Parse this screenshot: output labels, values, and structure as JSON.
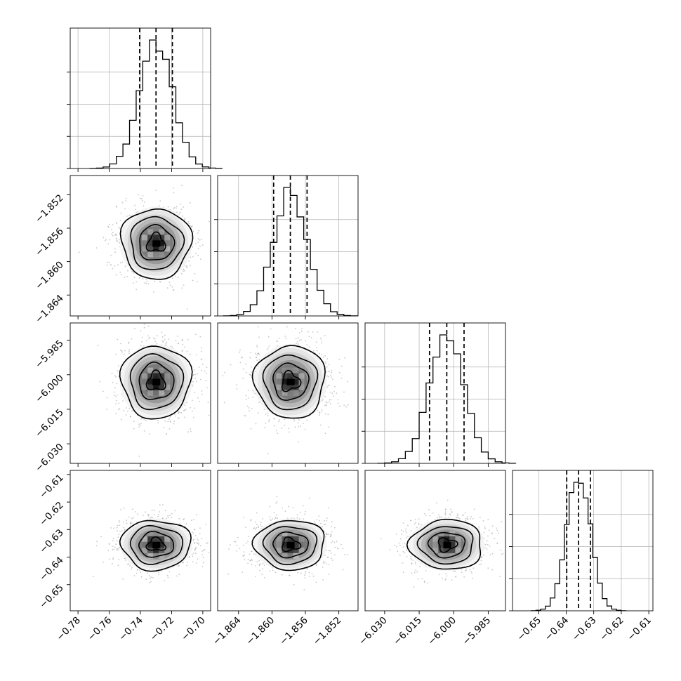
{
  "chart_data": {
    "type": "corner",
    "grid": true,
    "parameters": [
      {
        "range": [
          -0.785,
          -0.695
        ],
        "ticks": [
          -0.78,
          -0.76,
          -0.74,
          -0.72,
          -0.7
        ],
        "tick_labels": [
          "−0.78",
          "−0.76",
          "−0.74",
          "−0.72",
          "−0.70"
        ],
        "median": -0.73,
        "q16": -0.7405,
        "q84": -0.7195,
        "sigma": 0.0106
      },
      {
        "range": [
          -1.8665,
          -1.8497
        ],
        "ticks": [
          -1.864,
          -1.86,
          -1.856,
          -1.852
        ],
        "tick_labels": [
          "−1.864",
          "−1.860",
          "−1.856",
          "−1.852"
        ],
        "median": -1.8578,
        "q16": -1.8598,
        "q84": -1.8558,
        "sigma": 0.002
      },
      {
        "range": [
          -6.0385,
          -5.9775
        ],
        "ticks": [
          -6.03,
          -6.015,
          -6.0,
          -5.985
        ],
        "tick_labels": [
          "−6.030",
          "−6.015",
          "−6.000",
          "−5.985"
        ],
        "y_tick_labels": [
          "−5.985",
          "−6.000",
          "−6.015",
          "−6.030"
        ],
        "median": -6.003,
        "q16": -6.0105,
        "q84": -5.9955,
        "sigma": 0.0075
      },
      {
        "range": [
          -0.6595,
          -0.6085
        ],
        "ticks": [
          -0.65,
          -0.64,
          -0.63,
          -0.62,
          -0.61
        ],
        "tick_labels": [
          "−0.65",
          "−0.64",
          "−0.63",
          "−0.62",
          "−0.61"
        ],
        "median": -0.6355,
        "q16": -0.6398,
        "q84": -0.6312,
        "sigma": 0.0043
      }
    ],
    "histogram_bins": 20
  }
}
